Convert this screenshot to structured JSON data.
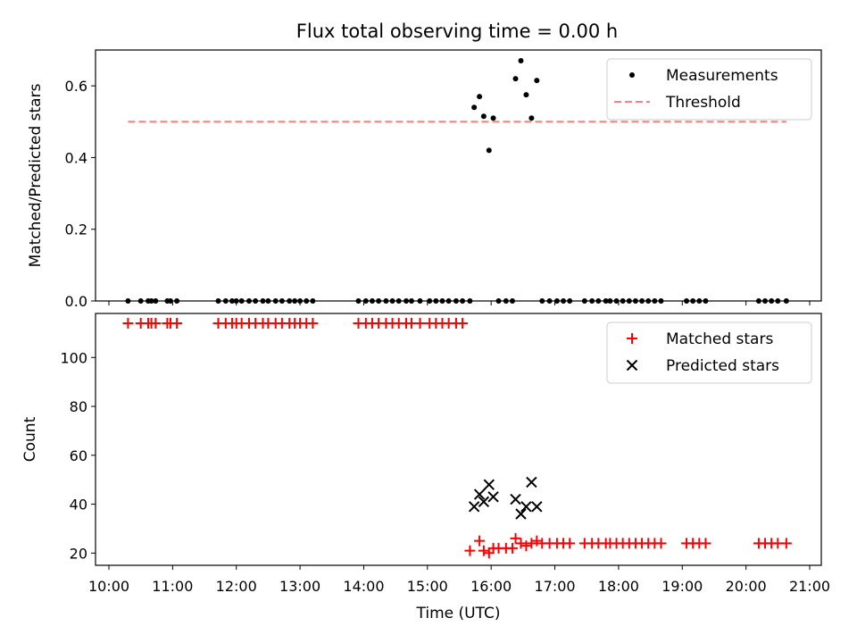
{
  "title": "Flux total observing time = 0.00 h",
  "chart_data": [
    {
      "type": "scatter",
      "ylabel": "Matched/Predicted stars",
      "xlabel": "",
      "xlim": [
        "10:00",
        "21:00"
      ],
      "ylim": [
        0,
        0.7
      ],
      "yticks": [
        0.0,
        0.2,
        0.4,
        0.6
      ],
      "ytick_labels": [
        "0.0",
        "0.2",
        "0.4",
        "0.6"
      ],
      "legend_position": "upper-right",
      "series": [
        {
          "name": "Measurements",
          "marker": "dot",
          "color": "#000000",
          "points": [
            [
              "10:18",
              0
            ],
            [
              "10:30",
              0
            ],
            [
              "10:37",
              0
            ],
            [
              "10:40",
              0
            ],
            [
              "10:44",
              0
            ],
            [
              "10:55",
              0
            ],
            [
              "10:58",
              0
            ],
            [
              "11:04",
              0
            ],
            [
              "11:43",
              0
            ],
            [
              "11:50",
              0
            ],
            [
              "11:56",
              0
            ],
            [
              "12:00",
              0
            ],
            [
              "12:05",
              0
            ],
            [
              "12:12",
              0
            ],
            [
              "12:18",
              0
            ],
            [
              "12:25",
              0
            ],
            [
              "12:30",
              0
            ],
            [
              "12:37",
              0
            ],
            [
              "12:43",
              0
            ],
            [
              "12:50",
              0
            ],
            [
              "12:55",
              0
            ],
            [
              "13:00",
              0
            ],
            [
              "13:06",
              0
            ],
            [
              "13:12",
              0
            ],
            [
              "13:55",
              0
            ],
            [
              "14:02",
              0
            ],
            [
              "14:08",
              0
            ],
            [
              "14:14",
              0
            ],
            [
              "14:21",
              0
            ],
            [
              "14:27",
              0
            ],
            [
              "14:33",
              0
            ],
            [
              "14:40",
              0
            ],
            [
              "14:45",
              0
            ],
            [
              "14:53",
              0
            ],
            [
              "15:02",
              0
            ],
            [
              "15:08",
              0
            ],
            [
              "15:14",
              0
            ],
            [
              "15:20",
              0
            ],
            [
              "15:27",
              0
            ],
            [
              "15:33",
              0
            ],
            [
              "15:40",
              0
            ],
            [
              "15:44",
              0.54
            ],
            [
              "15:49",
              0.57
            ],
            [
              "15:53",
              0.515
            ],
            [
              "15:58",
              0.42
            ],
            [
              "16:02",
              0.51
            ],
            [
              "16:07",
              0
            ],
            [
              "16:14",
              0
            ],
            [
              "16:20",
              0
            ],
            [
              "16:23",
              0.62
            ],
            [
              "16:28",
              0.67
            ],
            [
              "16:33",
              0.575
            ],
            [
              "16:38",
              0.51
            ],
            [
              "16:43",
              0.615
            ],
            [
              "16:48",
              0
            ],
            [
              "16:55",
              0
            ],
            [
              "17:02",
              0
            ],
            [
              "17:08",
              0
            ],
            [
              "17:14",
              0
            ],
            [
              "17:28",
              0
            ],
            [
              "17:35",
              0
            ],
            [
              "17:41",
              0
            ],
            [
              "17:48",
              0
            ],
            [
              "17:52",
              0
            ],
            [
              "17:58",
              0
            ],
            [
              "18:04",
              0
            ],
            [
              "18:10",
              0
            ],
            [
              "18:16",
              0
            ],
            [
              "18:22",
              0
            ],
            [
              "18:28",
              0
            ],
            [
              "18:34",
              0
            ],
            [
              "18:40",
              0
            ],
            [
              "19:04",
              0
            ],
            [
              "19:10",
              0
            ],
            [
              "19:16",
              0
            ],
            [
              "19:22",
              0
            ],
            [
              "20:12",
              0
            ],
            [
              "20:18",
              0
            ],
            [
              "20:24",
              0
            ],
            [
              "20:30",
              0
            ],
            [
              "20:38",
              0
            ]
          ]
        },
        {
          "name": "Threshold",
          "type": "line",
          "style": "dashed",
          "color": "#ff7f7f",
          "points": [
            [
              "10:18",
              0.5
            ],
            [
              "20:38",
              0.5
            ]
          ]
        }
      ]
    },
    {
      "type": "scatter",
      "ylabel": "Count",
      "xlabel": "Time (UTC)",
      "xlim": [
        "10:00",
        "21:00"
      ],
      "ylim": [
        15,
        118
      ],
      "yticks": [
        20,
        40,
        60,
        80,
        100
      ],
      "ytick_labels": [
        "20",
        "40",
        "60",
        "80",
        "100"
      ],
      "xticks": [
        "10:00",
        "11:00",
        "12:00",
        "13:00",
        "14:00",
        "15:00",
        "16:00",
        "17:00",
        "18:00",
        "19:00",
        "20:00",
        "21:00"
      ],
      "legend_position": "upper-right",
      "series": [
        {
          "name": "Matched stars",
          "marker": "plus",
          "color": "#ff0000",
          "points": [
            [
              "10:18",
              114
            ],
            [
              "10:30",
              114
            ],
            [
              "10:37",
              114
            ],
            [
              "10:40",
              114
            ],
            [
              "10:44",
              114
            ],
            [
              "10:55",
              114
            ],
            [
              "10:58",
              114
            ],
            [
              "11:04",
              114
            ],
            [
              "11:43",
              114
            ],
            [
              "11:50",
              114
            ],
            [
              "11:56",
              114
            ],
            [
              "12:00",
              114
            ],
            [
              "12:05",
              114
            ],
            [
              "12:12",
              114
            ],
            [
              "12:18",
              114
            ],
            [
              "12:25",
              114
            ],
            [
              "12:30",
              114
            ],
            [
              "12:37",
              114
            ],
            [
              "12:43",
              114
            ],
            [
              "12:50",
              114
            ],
            [
              "12:55",
              114
            ],
            [
              "13:00",
              114
            ],
            [
              "13:06",
              114
            ],
            [
              "13:12",
              114
            ],
            [
              "13:55",
              114
            ],
            [
              "14:02",
              114
            ],
            [
              "14:08",
              114
            ],
            [
              "14:14",
              114
            ],
            [
              "14:21",
              114
            ],
            [
              "14:27",
              114
            ],
            [
              "14:33",
              114
            ],
            [
              "14:40",
              114
            ],
            [
              "14:45",
              114
            ],
            [
              "14:53",
              114
            ],
            [
              "15:02",
              114
            ],
            [
              "15:08",
              114
            ],
            [
              "15:14",
              114
            ],
            [
              "15:20",
              114
            ],
            [
              "15:27",
              114
            ],
            [
              "15:33",
              114
            ],
            [
              "15:40",
              21
            ],
            [
              "15:49",
              25
            ],
            [
              "15:53",
              21
            ],
            [
              "15:58",
              20
            ],
            [
              "16:02",
              22
            ],
            [
              "16:07",
              22
            ],
            [
              "16:14",
              22
            ],
            [
              "16:20",
              22
            ],
            [
              "16:23",
              26
            ],
            [
              "16:28",
              24
            ],
            [
              "16:33",
              23
            ],
            [
              "16:38",
              24
            ],
            [
              "16:43",
              25
            ],
            [
              "16:48",
              24
            ],
            [
              "16:55",
              24
            ],
            [
              "17:02",
              24
            ],
            [
              "17:08",
              24
            ],
            [
              "17:14",
              24
            ],
            [
              "17:28",
              24
            ],
            [
              "17:35",
              24
            ],
            [
              "17:41",
              24
            ],
            [
              "17:48",
              24
            ],
            [
              "17:52",
              24
            ],
            [
              "17:58",
              24
            ],
            [
              "18:04",
              24
            ],
            [
              "18:10",
              24
            ],
            [
              "18:16",
              24
            ],
            [
              "18:22",
              24
            ],
            [
              "18:28",
              24
            ],
            [
              "18:34",
              24
            ],
            [
              "18:40",
              24
            ],
            [
              "19:04",
              24
            ],
            [
              "19:10",
              24
            ],
            [
              "19:16",
              24
            ],
            [
              "19:22",
              24
            ],
            [
              "20:12",
              24
            ],
            [
              "20:18",
              24
            ],
            [
              "20:24",
              24
            ],
            [
              "20:30",
              24
            ],
            [
              "20:38",
              24
            ]
          ]
        },
        {
          "name": "Predicted stars",
          "marker": "x",
          "color": "#000000",
          "points": [
            [
              "15:44",
              39
            ],
            [
              "15:49",
              44
            ],
            [
              "15:53",
              41
            ],
            [
              "15:58",
              48
            ],
            [
              "16:02",
              43
            ],
            [
              "16:23",
              42
            ],
            [
              "16:28",
              36
            ],
            [
              "16:33",
              39
            ],
            [
              "16:38",
              49
            ],
            [
              "16:43",
              39
            ]
          ]
        }
      ]
    }
  ]
}
